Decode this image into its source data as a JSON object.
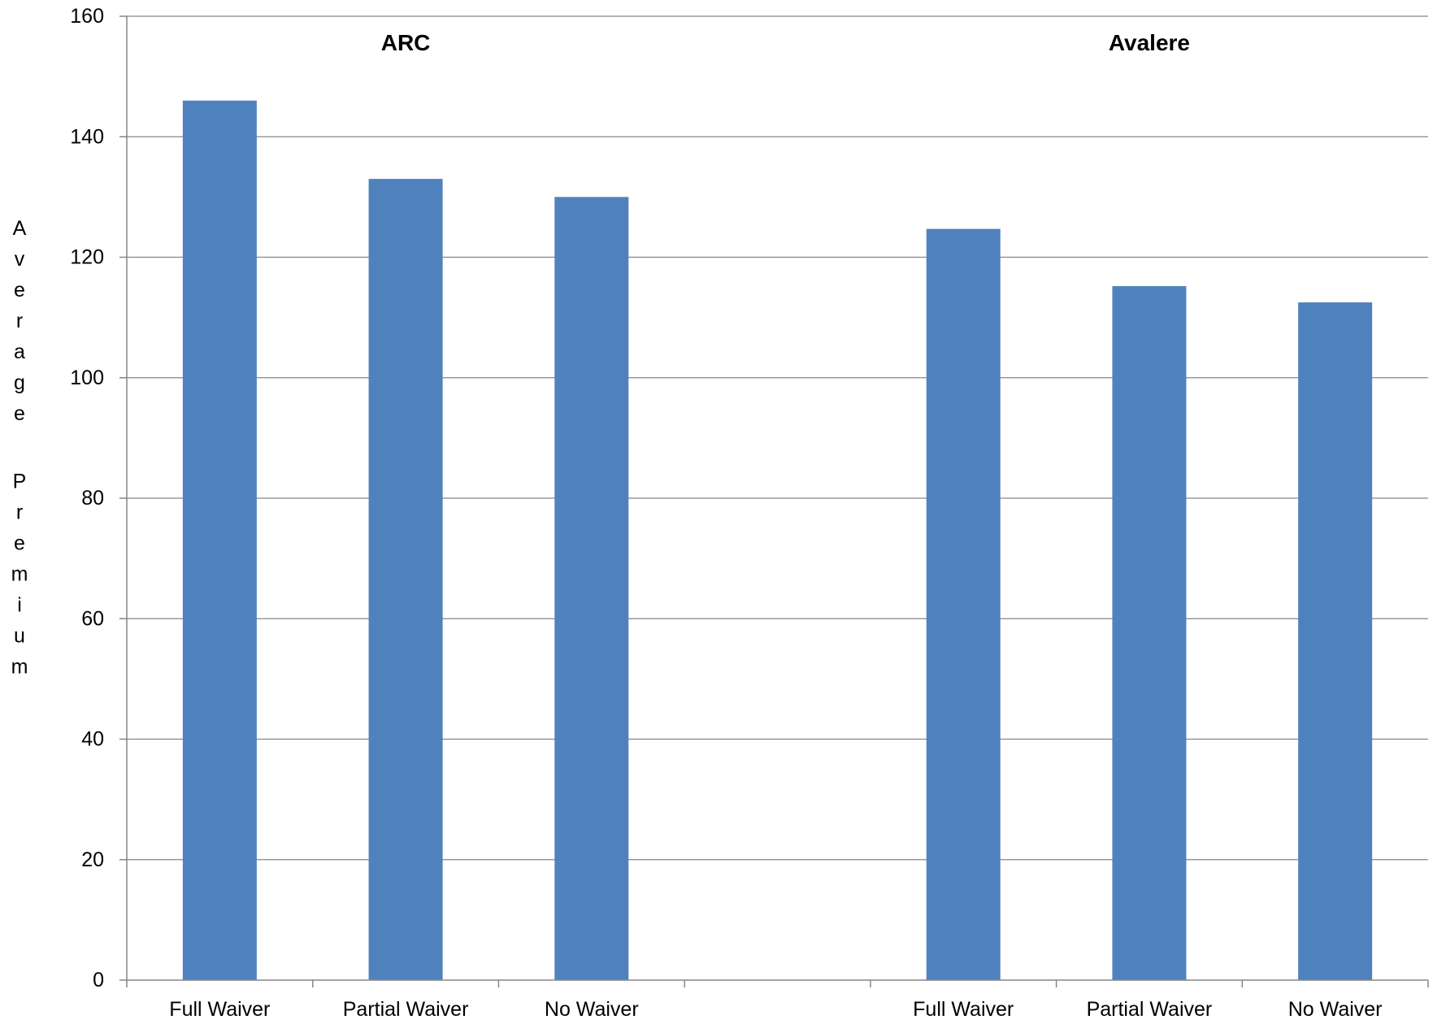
{
  "chart_data": {
    "type": "bar",
    "categories": [
      "Full Waiver",
      "Partial Waiver",
      "No Waiver",
      "",
      "Full Waiver",
      "Partial Waiver",
      "No Waiver"
    ],
    "values": [
      146,
      133,
      130,
      null,
      124.7,
      115.2,
      112.5
    ],
    "group_labels": [
      "ARC",
      "Avalere"
    ],
    "ylabel": "Average Premium",
    "xlabel": "",
    "title": "",
    "ylim": [
      0,
      160
    ],
    "yticks": [
      0,
      20,
      40,
      60,
      80,
      100,
      120,
      140,
      160
    ],
    "grid": true,
    "legend": "none",
    "bar_color": "#4F81BD",
    "grid_color": "#868686"
  }
}
